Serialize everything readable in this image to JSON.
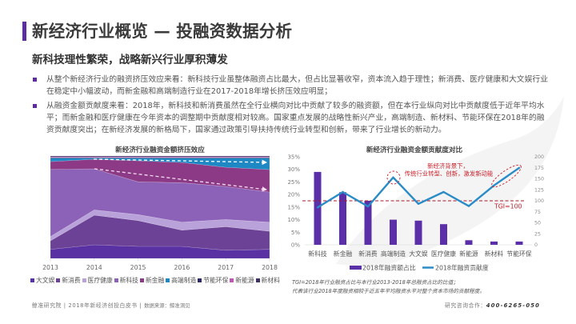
{
  "header": {
    "title": "新经济行业概览 — 投融资数据分析",
    "subtitle": "新科技理性繁荣，战略新兴行业厚积薄发"
  },
  "bullets": [
    {
      "lines": [
        "从整个新经济行业的融资挤压效应来看：新科技行业虽整体融资占比最大，但占比显著收窄，资本流入趋于理性；新消费、医疗健康和大文娱行业",
        "在稳定中小幅波动，而新金融和高端制造行业在2017-2018年增长挤压效应明显；"
      ]
    },
    {
      "lines": [
        "从融资金额贡献度来看：2018年，新科技和新消费虽然在全行业横向对比中贡献了较多的融资额，但在本行业纵向对比中贡献度低于近年平均水",
        "平；而新金融和医疗健康在今年资本的调整期中贡献度相对较高。国家重点发展的战略性新兴产业，高端制造、新材料、节能环保在2018年的融",
        "资贡献度突出；在新经济发展的新格局下，国家通过政策引导扶持传统行业转型和创新，带来了行业增长的新动力。"
      ]
    }
  ],
  "colors": {
    "accent": "#5b2d9e",
    "bar": "#5a2fa8",
    "line": "#2a8cc6",
    "tgi": "#a8182a",
    "annotation": "#c8202a"
  },
  "chart_data": [
    {
      "type": "area",
      "stacking": "percent",
      "title": "新经济行业融资金额挤压效应",
      "xlabel": "",
      "ylabel": "",
      "categories": [
        "2013",
        "2014",
        "2015",
        "2016",
        "2017",
        "2018"
      ],
      "ylim": [
        0,
        100
      ],
      "grid": false,
      "legend_position": "bottom",
      "series": [
        {
          "name": "大文娱",
          "color": "#5a31a3",
          "values": [
            8.8,
            13.3,
            11.7,
            11.7,
            8.0,
            8.8
          ]
        },
        {
          "name": "新消费",
          "color": "#6c4296",
          "values": [
            8.4,
            28.9,
            25.2,
            15.9,
            23.0,
            17.7
          ]
        },
        {
          "name": "医疗健康",
          "color": "#b9a2d9",
          "values": [
            4.1,
            5.2,
            5.8,
            7.8,
            7.0,
            8.8
          ]
        },
        {
          "name": "新科技",
          "color": "#8c62b9",
          "values": [
            65.6,
            40.1,
            32.0,
            38.6,
            32.3,
            29.5
          ]
        },
        {
          "name": "新金融",
          "color": "#8d3a86",
          "values": [
            7.6,
            9.4,
            20.5,
            19.8,
            18.8,
            21.9
          ]
        },
        {
          "name": "高端制造",
          "color": "#1d88c3",
          "values": [
            3.5,
            1.2,
            2.7,
            4.3,
            9.0,
            11.3
          ]
        },
        {
          "name": "节能环保",
          "color": "#2b2a66",
          "values": [
            0.6,
            0.6,
            0.6,
            0.6,
            0.6,
            0.6
          ]
        },
        {
          "name": "新能源",
          "color": "#c055b8",
          "values": [
            0.6,
            0.6,
            0.6,
            0.6,
            0.6,
            0.6
          ]
        },
        {
          "name": "新材料",
          "color": "#3f2f63",
          "values": [
            0.8,
            0.8,
            0.8,
            0.8,
            0.8,
            0.8
          ]
        }
      ]
    },
    {
      "type": "bar+line",
      "title": "新经济行业融资金额贡献度对比",
      "categories": [
        "新科技",
        "新金融",
        "新消费",
        "高端制造",
        "大文娱",
        "医疗健康",
        "新能源",
        "新材料",
        "节能环保"
      ],
      "y_left": {
        "lim": [
          0,
          35
        ],
        "ticks": [
          "35%",
          "30%",
          "25%",
          "20%",
          "15%",
          "10%",
          "5%",
          "0%"
        ]
      },
      "y_right": {
        "lim": [
          0,
          200
        ],
        "ticks": [
          "200",
          "175",
          "150",
          "125",
          "100",
          "75",
          "50",
          "25",
          "0"
        ]
      },
      "grid": false,
      "legend_position": "bottom",
      "series": [
        {
          "name": "2018年融资额占比",
          "type": "bar",
          "axis": "left",
          "unit": "%",
          "values": [
            29.0,
            20.9,
            17.5,
            10.0,
            9.6,
            8.2,
            1.8,
            1.3,
            1.3
          ]
        },
        {
          "name": "2018年融资贡献度",
          "type": "line",
          "axis": "right",
          "values": [
            85,
            120,
            87,
            153,
            93,
            120,
            88,
            135,
            175
          ]
        }
      ],
      "reference_line": {
        "label": "TGI=100",
        "value": 100,
        "axis": "right"
      },
      "annotation": {
        "lines": [
          "新经济背景下，",
          "传统行业转型、创新，激发新动能"
        ]
      },
      "notes": [
        "TGI=2018年行业融资占比与本行业2013-2018年总融资占比的比值；",
        "代表该行业2018年度融资相较于近五年平均融资水平对整个资本市场的贡献程度。"
      ]
    }
  ],
  "footer": {
    "left_main": "鲸准研究院 | 2018年新经济创投白皮书 |",
    "source": "数据来源：鲸准洞见",
    "contact_label": "研究咨询合作：",
    "phone": "400-6265-050"
  }
}
